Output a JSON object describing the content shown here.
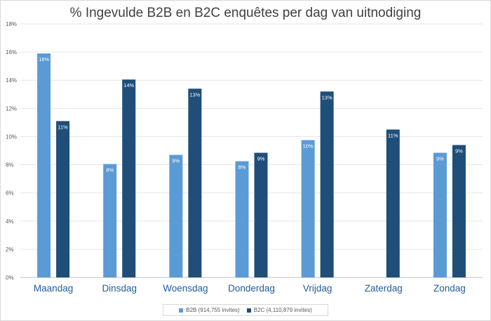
{
  "chart_data": {
    "type": "bar",
    "title": "% Ingevulde B2B en B2C enquêtes per dag van uitnodiging",
    "xlabel": "",
    "ylabel": "",
    "categories": [
      "Maandag",
      "Dinsdag",
      "Woensdag",
      "Donderdag",
      "Vrijdag",
      "Zaterdag",
      "Zondag"
    ],
    "series": [
      {
        "name": "B2B (914,755 invites)",
        "color": "#5b9bd5",
        "values": [
          15.9,
          8.05,
          8.7,
          8.25,
          9.75,
          null,
          8.85
        ],
        "labels": [
          "16%",
          "8%",
          "9%",
          "8%",
          "10%",
          "",
          "9%"
        ]
      },
      {
        "name": "B2C (4,110,879 invites)",
        "color": "#1f4e79",
        "values": [
          11.1,
          14.05,
          13.4,
          8.85,
          13.2,
          10.5,
          9.4
        ],
        "labels": [
          "11%",
          "14%",
          "13%",
          "9%",
          "13%",
          "11%",
          "9%"
        ]
      }
    ],
    "yticks": [
      "0%",
      "2%",
      "4%",
      "6%",
      "8%",
      "10%",
      "12%",
      "14%",
      "16%",
      "18%"
    ],
    "ylim": [
      0,
      18
    ],
    "grid": true,
    "legend_position": "bottom"
  }
}
